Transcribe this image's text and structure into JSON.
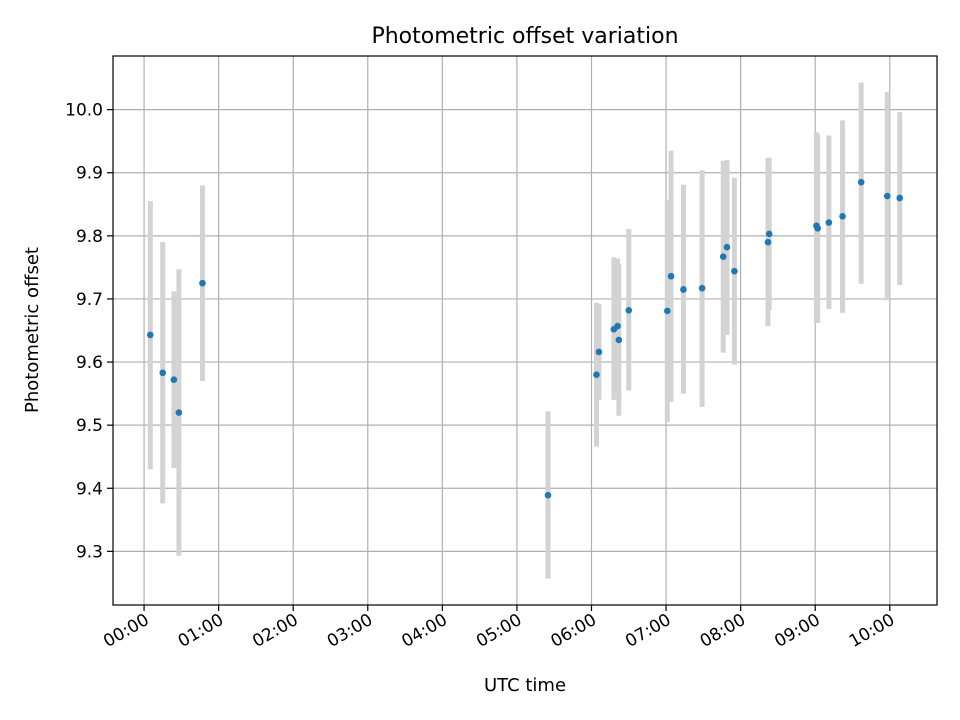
{
  "chart_data": {
    "type": "scatter",
    "title": "Photometric offset variation",
    "xlabel": "UTC time",
    "ylabel": "Photometric offset",
    "grid": true,
    "x_axis": {
      "kind": "time",
      "min": "23:35",
      "max": "10:38",
      "ticks": [
        "00:00",
        "01:00",
        "02:00",
        "03:00",
        "04:00",
        "05:00",
        "06:00",
        "07:00",
        "08:00",
        "09:00",
        "10:00"
      ]
    },
    "y_axis": {
      "min": 9.215,
      "max": 10.085,
      "ticks": [
        9.3,
        9.4,
        9.5,
        9.6,
        9.7,
        9.8,
        9.9,
        10.0
      ],
      "tick_labels": [
        "9.3",
        "9.4",
        "9.5",
        "9.6",
        "9.7",
        "9.8",
        "9.9",
        "10.0"
      ]
    },
    "colors": {
      "marker": "#1f77b4",
      "errorbar": "#d3d3d3"
    },
    "points": [
      {
        "t": "00:05",
        "y": 9.643,
        "lo": 9.43,
        "hi": 9.855
      },
      {
        "t": "00:15",
        "y": 9.583,
        "lo": 9.376,
        "hi": 9.79
      },
      {
        "t": "00:24",
        "y": 9.572,
        "lo": 9.432,
        "hi": 9.712
      },
      {
        "t": "00:28",
        "y": 9.52,
        "lo": 9.293,
        "hi": 9.747
      },
      {
        "t": "00:47",
        "y": 9.725,
        "lo": 9.57,
        "hi": 9.88
      },
      {
        "t": "05:25",
        "y": 9.389,
        "lo": 9.257,
        "hi": 9.522
      },
      {
        "t": "06:04",
        "y": 9.58,
        "lo": 9.466,
        "hi": 9.694
      },
      {
        "t": "06:06",
        "y": 9.616,
        "lo": 9.54,
        "hi": 9.692
      },
      {
        "t": "06:18",
        "y": 9.652,
        "lo": 9.54,
        "hi": 9.766
      },
      {
        "t": "06:21",
        "y": 9.657,
        "lo": 9.55,
        "hi": 9.764
      },
      {
        "t": "06:22",
        "y": 9.635,
        "lo": 9.515,
        "hi": 9.755
      },
      {
        "t": "06:30",
        "y": 9.682,
        "lo": 9.555,
        "hi": 9.811
      },
      {
        "t": "07:01",
        "y": 9.681,
        "lo": 9.505,
        "hi": 9.857
      },
      {
        "t": "07:04",
        "y": 9.736,
        "lo": 9.537,
        "hi": 9.935
      },
      {
        "t": "07:14",
        "y": 9.715,
        "lo": 9.55,
        "hi": 9.881
      },
      {
        "t": "07:29",
        "y": 9.717,
        "lo": 9.529,
        "hi": 9.904
      },
      {
        "t": "07:46",
        "y": 9.767,
        "lo": 9.615,
        "hi": 9.919
      },
      {
        "t": "07:49",
        "y": 9.782,
        "lo": 9.643,
        "hi": 9.92
      },
      {
        "t": "07:55",
        "y": 9.744,
        "lo": 9.596,
        "hi": 9.892
      },
      {
        "t": "08:22",
        "y": 9.79,
        "lo": 9.657,
        "hi": 9.923
      },
      {
        "t": "08:23",
        "y": 9.803,
        "lo": 9.682,
        "hi": 9.924
      },
      {
        "t": "09:01",
        "y": 9.816,
        "lo": 9.662,
        "hi": 9.964
      },
      {
        "t": "09:02",
        "y": 9.812,
        "lo": 9.662,
        "hi": 9.96
      },
      {
        "t": "09:11",
        "y": 9.821,
        "lo": 9.684,
        "hi": 9.959
      },
      {
        "t": "09:22",
        "y": 9.831,
        "lo": 9.678,
        "hi": 9.983
      },
      {
        "t": "09:37",
        "y": 9.885,
        "lo": 9.724,
        "hi": 10.043
      },
      {
        "t": "09:58",
        "y": 9.863,
        "lo": 9.698,
        "hi": 10.028
      },
      {
        "t": "10:08",
        "y": 9.86,
        "lo": 9.722,
        "hi": 9.996
      }
    ]
  }
}
